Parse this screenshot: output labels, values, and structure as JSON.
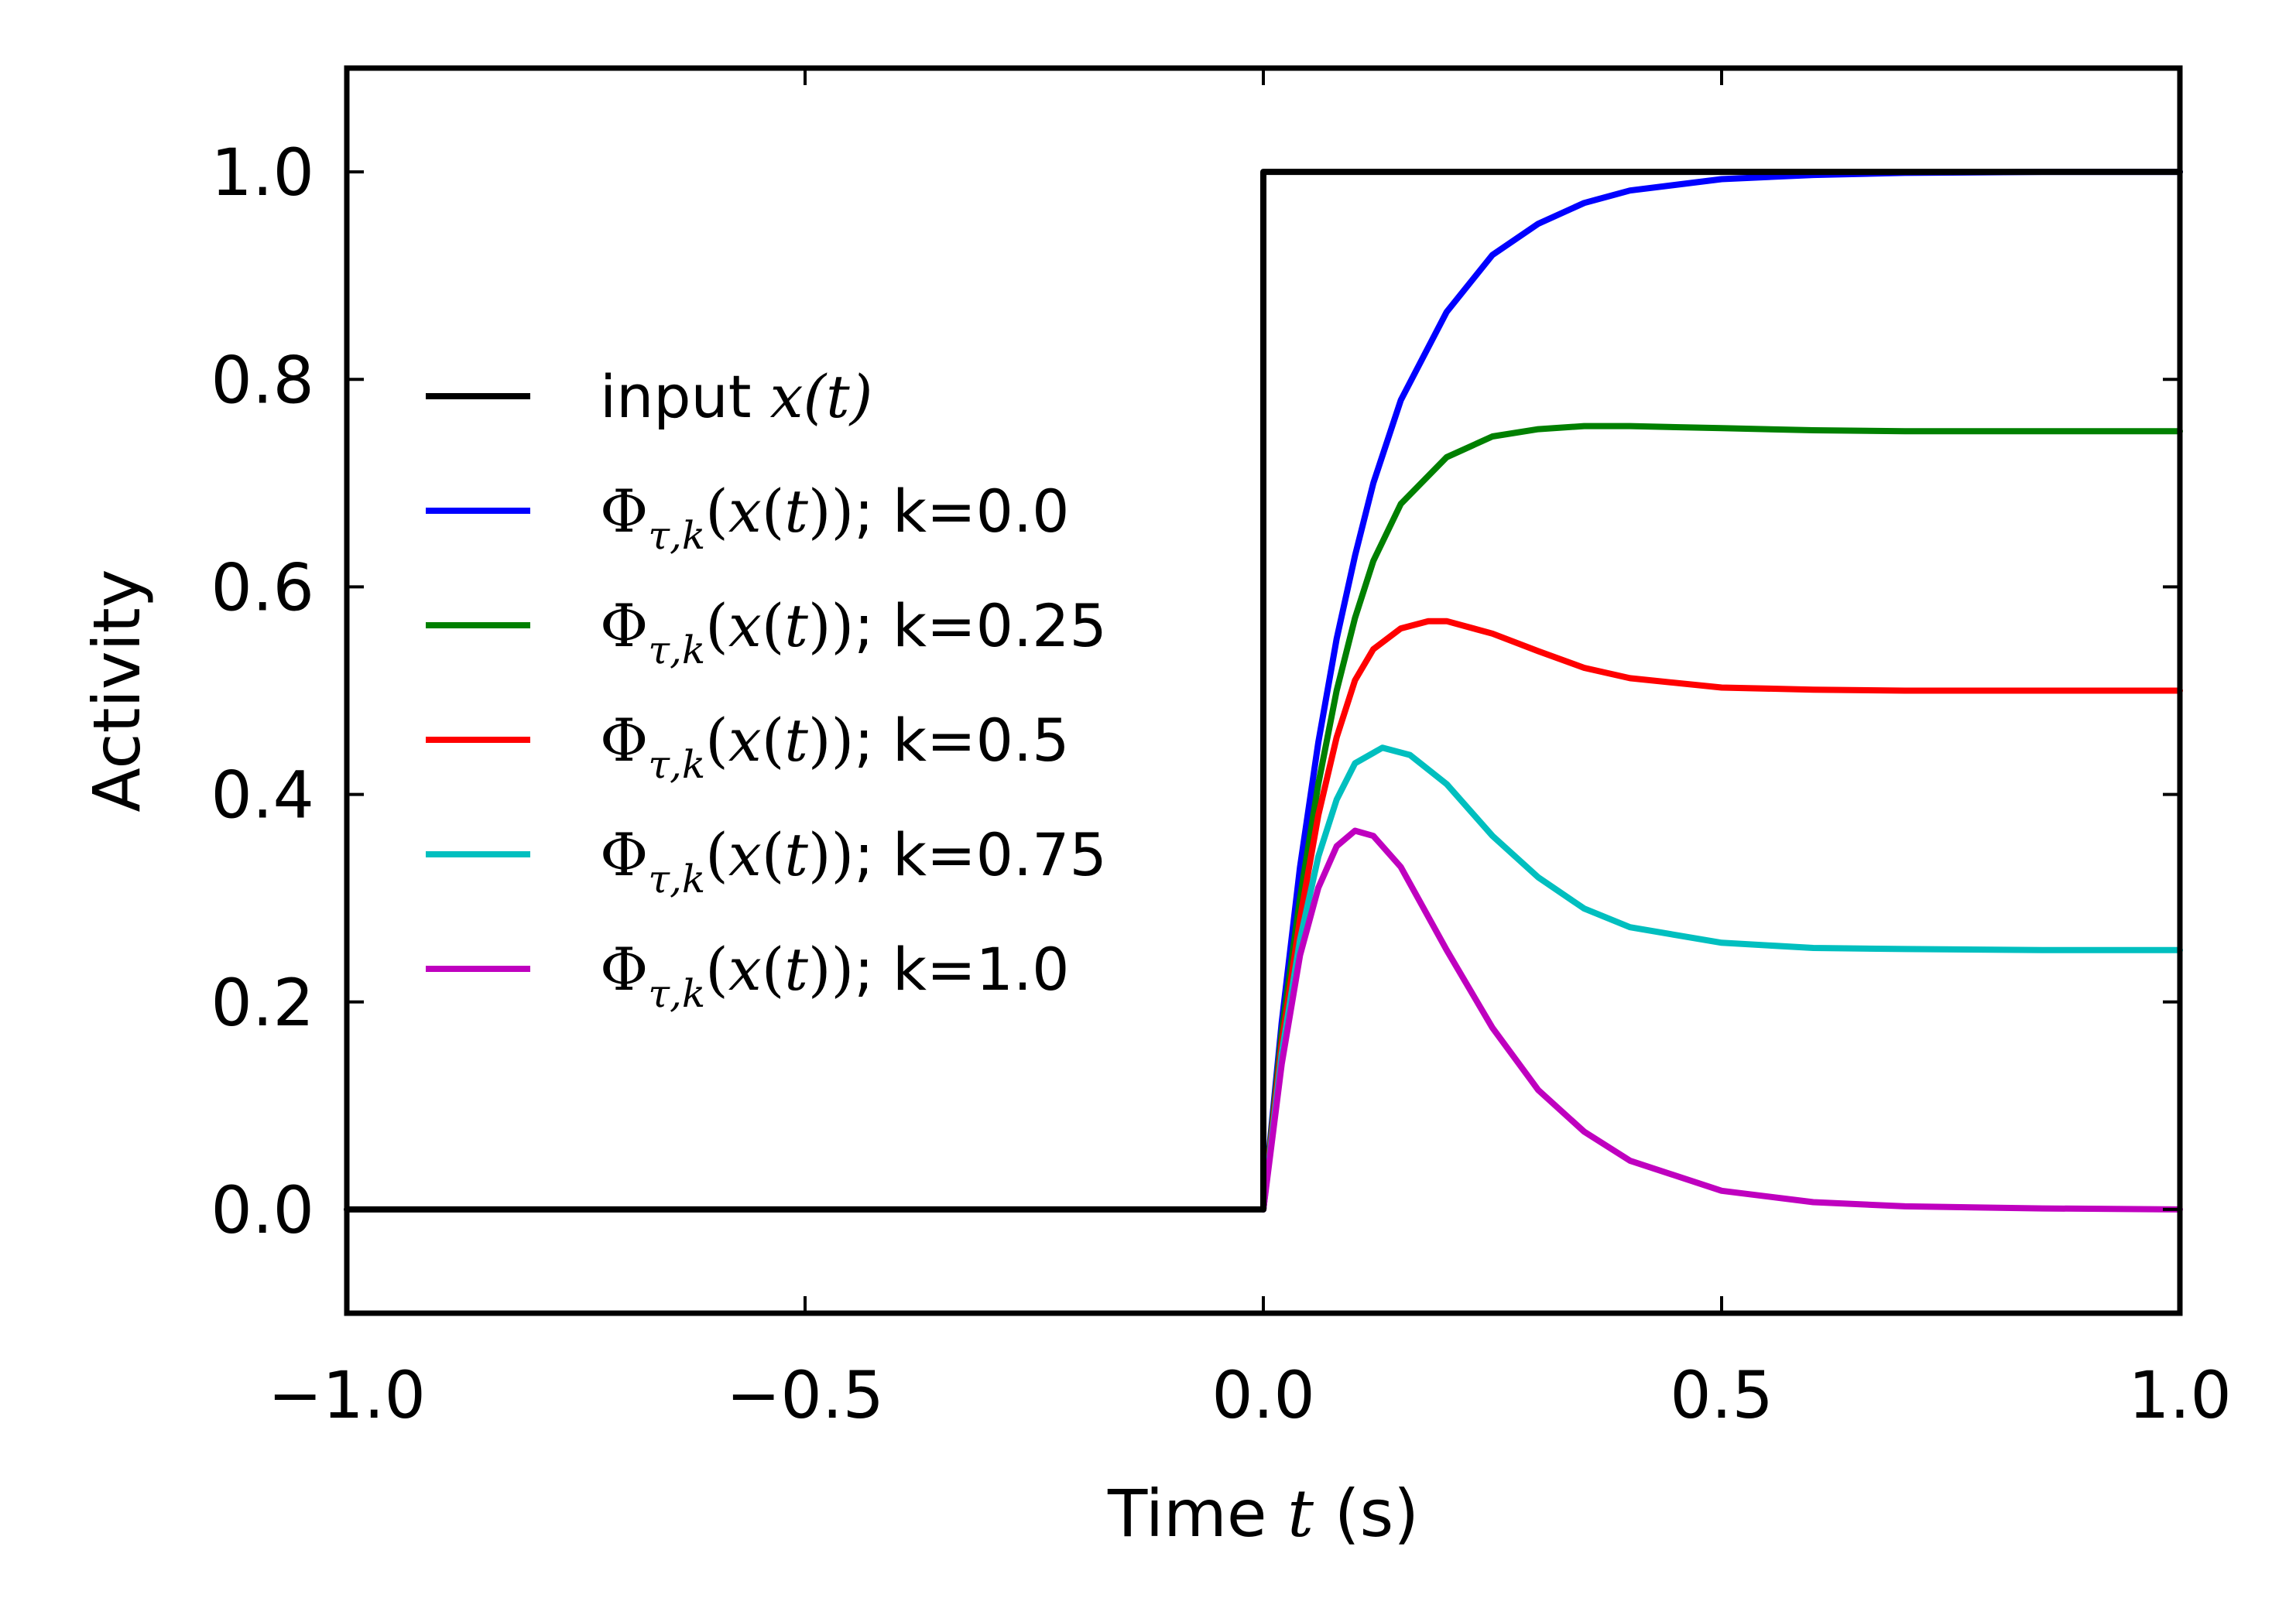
{
  "chart_data": {
    "type": "line",
    "xlabel": {
      "pre": "Time ",
      "var": "t",
      "post": " (s)"
    },
    "ylabel": "Activity",
    "xlim": [
      -1.0,
      1.0
    ],
    "ylim": [
      -0.1,
      1.1
    ],
    "xticks": [
      -1.0,
      -0.5,
      0.0,
      0.5,
      1.0
    ],
    "xtick_labels": [
      "−1.0",
      "−0.5",
      "0.0",
      "0.5",
      "1.0"
    ],
    "yticks": [
      0.0,
      0.2,
      0.4,
      0.6,
      0.8,
      1.0
    ],
    "ytick_labels": [
      "0.0",
      "0.2",
      "0.4",
      "0.6",
      "0.8",
      "1.0"
    ],
    "grid": false,
    "legend_position": "center-left",
    "series": [
      {
        "name": "input x(t)",
        "color": "#000000",
        "legend": {
          "plain": "input ",
          "math": "x(t)"
        },
        "points": [
          [
            -1.0,
            0.0
          ],
          [
            0.0,
            0.0
          ],
          [
            0.0,
            1.0
          ],
          [
            1.0,
            1.0
          ]
        ]
      },
      {
        "name": "Φτ,k(x(t)); k=0.0",
        "color": "#0000ff",
        "legend": {
          "k": "; k=0.0"
        },
        "points": [
          [
            0.0,
            0.0
          ],
          [
            0.02,
            0.18
          ],
          [
            0.04,
            0.33
          ],
          [
            0.06,
            0.45
          ],
          [
            0.08,
            0.55
          ],
          [
            0.1,
            0.63
          ],
          [
            0.12,
            0.7
          ],
          [
            0.15,
            0.78
          ],
          [
            0.2,
            0.865
          ],
          [
            0.25,
            0.92
          ],
          [
            0.3,
            0.95
          ],
          [
            0.35,
            0.97
          ],
          [
            0.4,
            0.982
          ],
          [
            0.5,
            0.993
          ],
          [
            0.6,
            0.997
          ],
          [
            0.7,
            0.999
          ],
          [
            0.85,
            1.0
          ],
          [
            1.0,
            1.0
          ]
        ]
      },
      {
        "name": "Φτ,k(x(t)); k=0.25",
        "color": "#008000",
        "legend": {
          "k": "; k=0.25"
        },
        "points": [
          [
            0.0,
            0.0
          ],
          [
            0.02,
            0.17
          ],
          [
            0.04,
            0.3
          ],
          [
            0.06,
            0.41
          ],
          [
            0.08,
            0.5
          ],
          [
            0.1,
            0.57
          ],
          [
            0.12,
            0.625
          ],
          [
            0.15,
            0.68
          ],
          [
            0.2,
            0.725
          ],
          [
            0.25,
            0.745
          ],
          [
            0.3,
            0.752
          ],
          [
            0.35,
            0.755
          ],
          [
            0.4,
            0.755
          ],
          [
            0.5,
            0.753
          ],
          [
            0.6,
            0.751
          ],
          [
            0.7,
            0.75
          ],
          [
            0.85,
            0.75
          ],
          [
            1.0,
            0.75
          ]
        ]
      },
      {
        "name": "Φτ,k(x(t)); k=0.5",
        "color": "#ff0000",
        "legend": {
          "k": "; k=0.5"
        },
        "points": [
          [
            0.0,
            0.0
          ],
          [
            0.02,
            0.16
          ],
          [
            0.04,
            0.28
          ],
          [
            0.06,
            0.38
          ],
          [
            0.08,
            0.455
          ],
          [
            0.1,
            0.51
          ],
          [
            0.12,
            0.54
          ],
          [
            0.15,
            0.56
          ],
          [
            0.18,
            0.567
          ],
          [
            0.2,
            0.567
          ],
          [
            0.25,
            0.555
          ],
          [
            0.3,
            0.538
          ],
          [
            0.35,
            0.522
          ],
          [
            0.4,
            0.512
          ],
          [
            0.5,
            0.503
          ],
          [
            0.6,
            0.501
          ],
          [
            0.7,
            0.5
          ],
          [
            0.85,
            0.5
          ],
          [
            1.0,
            0.5
          ]
        ]
      },
      {
        "name": "Φτ,k(x(t)); k=0.75",
        "color": "#00bfbf",
        "legend": {
          "k": "; k=0.75"
        },
        "points": [
          [
            0.0,
            0.0
          ],
          [
            0.02,
            0.15
          ],
          [
            0.04,
            0.26
          ],
          [
            0.06,
            0.34
          ],
          [
            0.08,
            0.395
          ],
          [
            0.1,
            0.43
          ],
          [
            0.13,
            0.445
          ],
          [
            0.16,
            0.438
          ],
          [
            0.2,
            0.41
          ],
          [
            0.25,
            0.36
          ],
          [
            0.3,
            0.32
          ],
          [
            0.35,
            0.29
          ],
          [
            0.4,
            0.272
          ],
          [
            0.5,
            0.257
          ],
          [
            0.6,
            0.252
          ],
          [
            0.7,
            0.251
          ],
          [
            0.85,
            0.25
          ],
          [
            1.0,
            0.25
          ]
        ]
      },
      {
        "name": "Φτ,k(x(t)); k=1.0",
        "color": "#bf00bf",
        "legend": {
          "k": "; k=1.0"
        },
        "points": [
          [
            0.0,
            0.0
          ],
          [
            0.02,
            0.14
          ],
          [
            0.04,
            0.245
          ],
          [
            0.06,
            0.31
          ],
          [
            0.08,
            0.35
          ],
          [
            0.1,
            0.365
          ],
          [
            0.12,
            0.36
          ],
          [
            0.15,
            0.33
          ],
          [
            0.2,
            0.25
          ],
          [
            0.25,
            0.175
          ],
          [
            0.3,
            0.115
          ],
          [
            0.35,
            0.075
          ],
          [
            0.4,
            0.047
          ],
          [
            0.5,
            0.018
          ],
          [
            0.6,
            0.007
          ],
          [
            0.7,
            0.003
          ],
          [
            0.85,
            0.001
          ],
          [
            1.0,
            0.0
          ]
        ]
      }
    ]
  }
}
